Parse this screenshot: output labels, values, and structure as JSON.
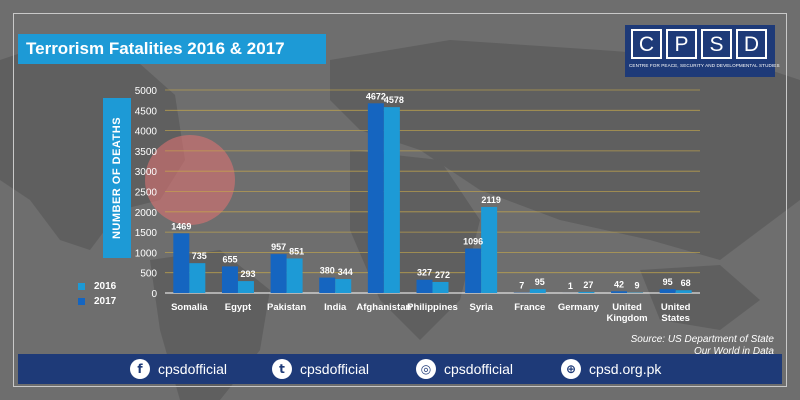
{
  "title": "Terrorism Fatalities 2016 & 2017",
  "logo": {
    "letters": [
      "C",
      "P",
      "S",
      "D"
    ],
    "tagline": "CENTRE FOR PEACE, SECURITY AND DEVELOPMENTAL STUDIES"
  },
  "source": {
    "line1": "Source: US Department of State",
    "line2": "Our World in Data"
  },
  "footer": {
    "items": [
      {
        "icon": "facebook-icon",
        "label": "cpsdofficial"
      },
      {
        "icon": "twitter-icon",
        "label": "cpsdofficial"
      },
      {
        "icon": "instagram-icon",
        "label": "cpsdofficial"
      },
      {
        "icon": "globe-icon",
        "label": "cpsd.org.pk"
      }
    ]
  },
  "colors": {
    "series_2016": "#1d9ad6",
    "series_2017": "#1565c0",
    "accent": "#1d9ad6",
    "footer": "#1e3a78"
  },
  "chart_data": {
    "type": "bar",
    "title": "Terrorism Fatalities 2016 & 2017",
    "ylabel": "NUMBER OF DEATHS",
    "xlabel": "",
    "ylim": [
      0,
      5000
    ],
    "yticks": [
      0,
      500,
      1000,
      1500,
      2000,
      2500,
      3000,
      3500,
      4000,
      4500,
      5000
    ],
    "grid": true,
    "legend": "bottom-left",
    "categories": [
      "Somalia",
      "Egypt",
      "Pakistan",
      "India",
      "Afghanistan",
      "Philippines",
      "Syria",
      "France",
      "Germany",
      "United Kingdom",
      "United States"
    ],
    "series": [
      {
        "name": "2016",
        "values": [
          735,
          293,
          851,
          344,
          4578,
          272,
          2119,
          95,
          27,
          9,
          68
        ]
      },
      {
        "name": "2017",
        "values": [
          1469,
          655,
          957,
          380,
          4672,
          327,
          1096,
          7,
          1,
          42,
          95
        ]
      }
    ]
  }
}
